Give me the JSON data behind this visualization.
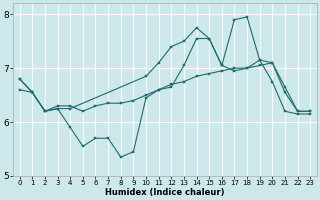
{
  "xlabel": "Humidex (Indice chaleur)",
  "xlim": [
    -0.5,
    23.5
  ],
  "ylim": [
    5,
    8.2
  ],
  "yticks": [
    5,
    6,
    7,
    8
  ],
  "xticks": [
    0,
    1,
    2,
    3,
    4,
    5,
    6,
    7,
    8,
    9,
    10,
    11,
    12,
    13,
    14,
    15,
    16,
    17,
    18,
    19,
    20,
    21,
    22,
    23
  ],
  "bg_color": "#cce8ea",
  "grid_color": "#ffffff",
  "line_color": "#1e6b6b",
  "line1_x": [
    0,
    1,
    2,
    3,
    4,
    5,
    6,
    7,
    8,
    9,
    10,
    11,
    12,
    13,
    14,
    15,
    16,
    17,
    18,
    19,
    20,
    21,
    22,
    23
  ],
  "line1_y": [
    6.8,
    6.55,
    6.2,
    6.25,
    5.9,
    5.55,
    5.7,
    5.7,
    5.35,
    5.45,
    6.45,
    6.6,
    6.65,
    7.05,
    7.55,
    7.55,
    7.05,
    6.95,
    7.0,
    7.15,
    6.75,
    6.2,
    6.15,
    6.15
  ],
  "line2_x": [
    0,
    1,
    2,
    3,
    4,
    5,
    6,
    7,
    8,
    9,
    10,
    11,
    12,
    13,
    14,
    15,
    16,
    17,
    18,
    19,
    20,
    21,
    22,
    23
  ],
  "line2_y": [
    6.6,
    6.55,
    6.2,
    6.3,
    6.3,
    6.2,
    6.3,
    6.35,
    6.35,
    6.4,
    6.5,
    6.6,
    6.7,
    6.75,
    6.85,
    6.9,
    6.95,
    7.0,
    7.0,
    7.05,
    7.1,
    6.55,
    6.2,
    6.2
  ],
  "line3_x": [
    0,
    1,
    2,
    3,
    4,
    10,
    11,
    12,
    13,
    14,
    15,
    16,
    17,
    18,
    19,
    20,
    21,
    22,
    23
  ],
  "line3_y": [
    6.8,
    6.55,
    6.2,
    6.25,
    6.25,
    6.85,
    7.1,
    7.4,
    7.5,
    7.75,
    7.55,
    7.05,
    7.9,
    7.95,
    7.15,
    7.1,
    6.65,
    6.2,
    6.2
  ],
  "xlabel_fontsize": 6.0,
  "tick_fontsize_x": 5.0,
  "tick_fontsize_y": 6.5
}
